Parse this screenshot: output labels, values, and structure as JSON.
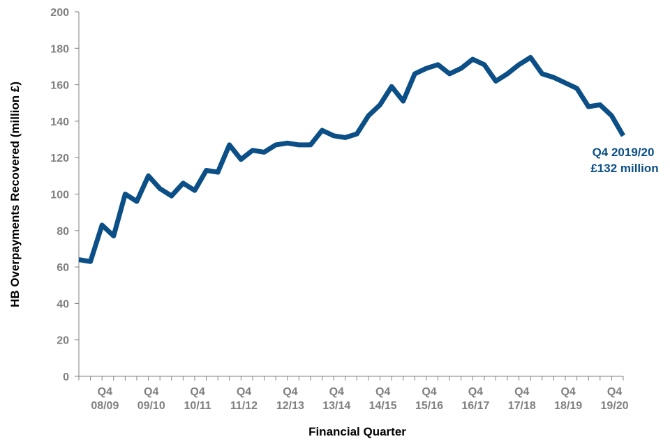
{
  "chart_data": {
    "type": "line",
    "xlabel": "Financial Quarter",
    "ylabel": "HB Overpayments Recovered (million £)",
    "ylim": [
      0,
      200
    ],
    "yticks": [
      0,
      20,
      40,
      60,
      80,
      100,
      120,
      140,
      160,
      180,
      200
    ],
    "grid": false,
    "line_color": "#0b4f86",
    "series": [
      {
        "values": [
          64,
          63,
          83,
          77,
          100,
          96,
          110,
          103,
          99,
          106,
          102,
          113,
          112,
          127,
          119,
          124,
          123,
          127,
          128,
          127,
          127,
          135,
          132,
          131,
          133,
          143,
          149,
          159,
          151,
          166,
          169,
          171,
          166,
          169,
          174,
          171,
          162,
          166,
          171,
          175,
          166,
          164,
          161,
          158,
          148,
          149,
          143,
          132
        ]
      }
    ],
    "tick_labels": [
      {
        "quarter": "Q4",
        "year": "08/09",
        "index": 3
      },
      {
        "quarter": "Q4",
        "year": "09/10",
        "index": 7
      },
      {
        "quarter": "Q4",
        "year": "10/11",
        "index": 11
      },
      {
        "quarter": "Q4",
        "year": "11/12",
        "index": 15
      },
      {
        "quarter": "Q4",
        "year": "12/13",
        "index": 19
      },
      {
        "quarter": "Q4",
        "year": "13/14",
        "index": 23
      },
      {
        "quarter": "Q4",
        "year": "14/15",
        "index": 27
      },
      {
        "quarter": "Q4",
        "year": "15/16",
        "index": 31
      },
      {
        "quarter": "Q4",
        "year": "16/17",
        "index": 35
      },
      {
        "quarter": "Q4",
        "year": "17/18",
        "index": 39
      },
      {
        "quarter": "Q4",
        "year": "18/19",
        "index": 43
      },
      {
        "quarter": "Q4",
        "year": "19/20",
        "index": 47
      }
    ],
    "annotation": {
      "line1": "Q4 2019/20",
      "line2": "£132 million",
      "point_index": 47
    }
  }
}
